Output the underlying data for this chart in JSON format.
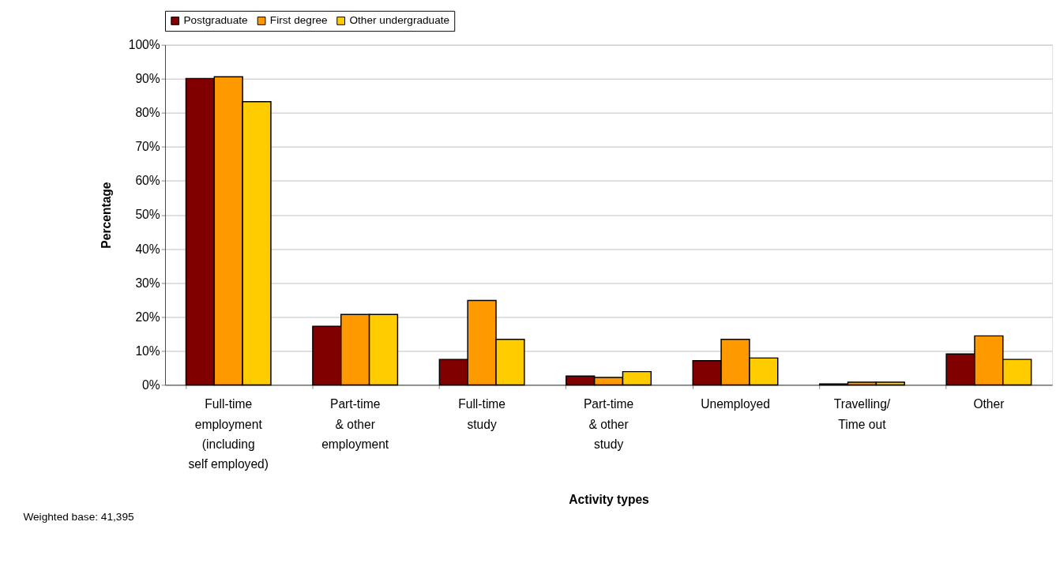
{
  "chart_data": {
    "type": "bar",
    "xlabel": "Activity types",
    "ylabel": "Percentage",
    "categories": [
      "Full-time\nemployment\n(including\nself employed)",
      "Part-time\n& other\nemployment",
      "Full-time\nstudy",
      "Part-time\n& other\nstudy",
      "Unemployed",
      "Travelling/\nTime out",
      "Other"
    ],
    "series": [
      {
        "name": "Postgraduate",
        "color": "#800000",
        "values": [
          90.1,
          17.2,
          7.5,
          2.6,
          7.1,
          0.3,
          9.1
        ]
      },
      {
        "name": "First degree",
        "color": "#ff9900",
        "values": [
          90.6,
          20.7,
          24.8,
          2.2,
          13.4,
          0.8,
          14.4
        ]
      },
      {
        "name": "Other undergraduate",
        "color": "#ffcc00",
        "values": [
          83.3,
          20.7,
          13.4,
          3.9,
          7.9,
          0.8,
          7.5
        ]
      }
    ],
    "ylim": [
      0,
      100
    ],
    "yticks": [
      {
        "value": 0,
        "label": "0%"
      },
      {
        "value": 10,
        "label": "10%"
      },
      {
        "value": 20,
        "label": "20%"
      },
      {
        "value": 30,
        "label": "30%"
      },
      {
        "value": 40,
        "label": "40%"
      },
      {
        "value": 50,
        "label": "50%"
      },
      {
        "value": 60,
        "label": "60%"
      },
      {
        "value": 70,
        "label": "70%"
      },
      {
        "value": 80,
        "label": "80%"
      },
      {
        "value": 90,
        "label": "90%"
      },
      {
        "value": 100,
        "label": "100%"
      }
    ],
    "grid": "y",
    "legend": "top",
    "annotations": [
      "Weighted base: 41,395"
    ]
  }
}
